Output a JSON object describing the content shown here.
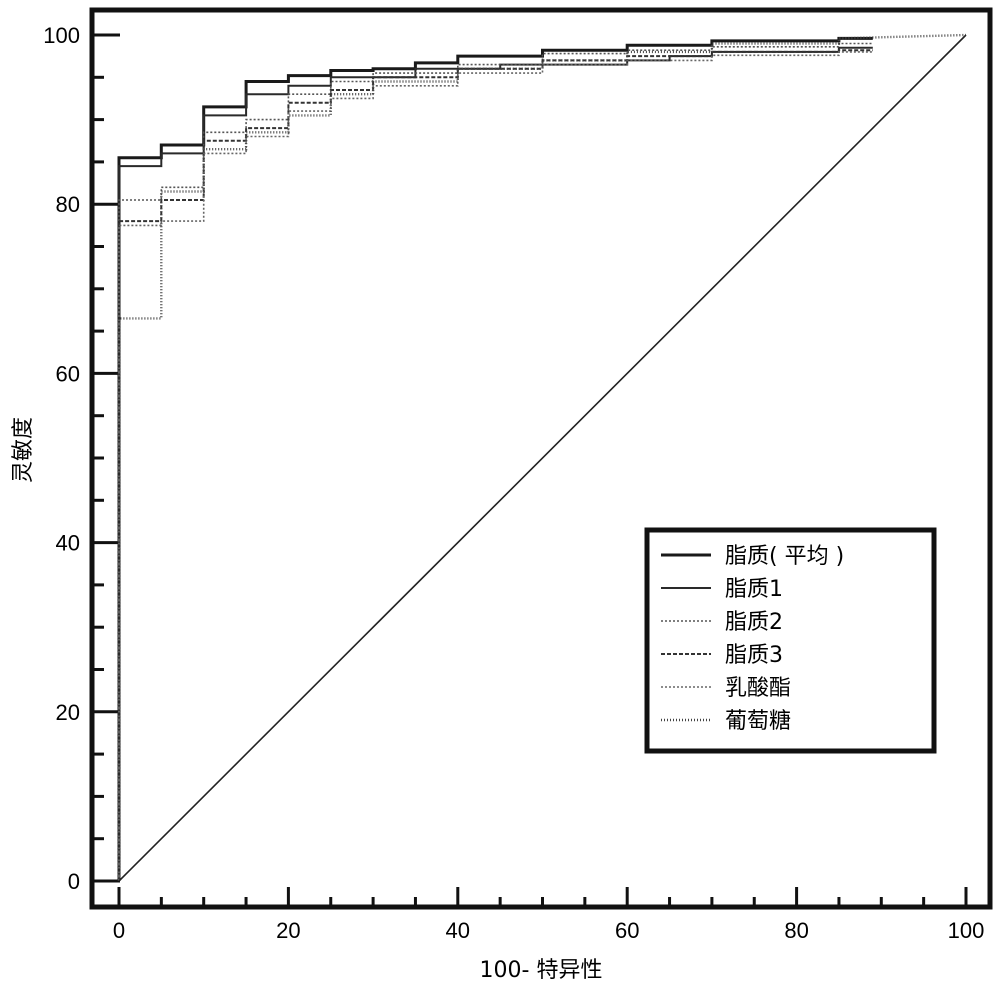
{
  "chart_data": {
    "type": "line",
    "xlabel": "100- 特异性",
    "ylabel": "灵敏度",
    "xlim": [
      0,
      100
    ],
    "ylim": [
      0,
      100
    ],
    "xticks": [
      0,
      20,
      40,
      60,
      80,
      100
    ],
    "yticks": [
      0,
      20,
      40,
      60,
      80,
      100
    ],
    "grid": false,
    "legend_position": "lower-right",
    "series": [
      {
        "name": "脂质( 平均 )",
        "x": [
          0,
          0,
          5,
          5,
          10,
          10,
          15,
          15,
          20,
          20,
          25,
          25,
          30,
          30,
          35,
          35,
          40,
          40,
          50,
          50,
          60,
          60,
          70,
          70,
          85,
          85,
          89
        ],
        "y": [
          0,
          85.5,
          85.5,
          87,
          87,
          91.5,
          91.5,
          94.5,
          94.5,
          95.2,
          95.2,
          95.8,
          95.8,
          96,
          96,
          96.7,
          96.7,
          97.5,
          97.5,
          98.2,
          98.2,
          98.8,
          98.8,
          99.3,
          99.3,
          99.6,
          99.6
        ]
      },
      {
        "name": "脂质1",
        "x": [
          0,
          0,
          5,
          5,
          10,
          10,
          15,
          15,
          20,
          20,
          25,
          25,
          35,
          35,
          45,
          45,
          60,
          60,
          65,
          65,
          70,
          70,
          85,
          85,
          89
        ],
        "y": [
          0,
          84.5,
          84.5,
          86,
          86,
          90.5,
          90.5,
          93,
          93,
          94,
          94,
          95,
          95,
          96,
          96,
          96.5,
          96.5,
          97,
          97,
          97.5,
          97.5,
          98,
          98,
          98.5,
          98.5
        ]
      },
      {
        "name": "脂质2",
        "x": [
          0,
          0,
          5,
          5,
          10,
          10,
          15,
          15,
          20,
          20,
          25,
          25,
          30,
          30,
          40,
          40,
          50,
          50,
          60,
          60,
          70,
          70,
          85,
          85,
          89
        ],
        "y": [
          0,
          80.5,
          80.5,
          82,
          82,
          88.5,
          88.5,
          90,
          90,
          93,
          93,
          94.5,
          94.5,
          95.5,
          95.5,
          96.5,
          96.5,
          97.8,
          97.8,
          98.2,
          98.2,
          98.6,
          98.6,
          99,
          99
        ]
      },
      {
        "name": "脂质3",
        "x": [
          0,
          0,
          5,
          5,
          10,
          10,
          15,
          15,
          20,
          20,
          25,
          25,
          30,
          30,
          40,
          40,
          50,
          50,
          60,
          60,
          70,
          70,
          85,
          85,
          89
        ],
        "y": [
          0,
          78,
          78,
          80.5,
          80.5,
          87.5,
          87.5,
          89,
          89,
          92,
          92,
          93.5,
          93.5,
          95,
          95,
          96,
          96,
          97,
          97,
          97.5,
          97.5,
          98,
          98,
          98.2,
          98.2
        ]
      },
      {
        "name": "乳酸酯",
        "x": [
          0,
          0,
          5,
          5,
          10,
          10,
          15,
          15,
          20,
          20,
          25,
          25,
          30,
          30,
          40,
          40,
          50,
          50,
          60,
          60,
          70,
          70,
          85,
          85,
          89
        ],
        "y": [
          0,
          77.5,
          77.5,
          78,
          78,
          86,
          86,
          88,
          88,
          91,
          91,
          92.5,
          92.5,
          94,
          94,
          95.5,
          95.5,
          96.5,
          96.5,
          97,
          97,
          97.6,
          97.6,
          98,
          98
        ]
      },
      {
        "name": "葡萄糖",
        "x": [
          0,
          0,
          5,
          5,
          10,
          10,
          15,
          15,
          20,
          20,
          25,
          25,
          30,
          30,
          40,
          40,
          50,
          50,
          60,
          60,
          70,
          70,
          85,
          85,
          100
        ],
        "y": [
          0,
          66.5,
          66.5,
          81.5,
          81.5,
          86.5,
          86.5,
          88.5,
          88.5,
          90.5,
          90.5,
          93,
          93,
          94.5,
          94.5,
          96,
          96,
          97,
          97,
          98,
          98,
          99,
          99,
          99.6,
          100
        ]
      },
      {
        "x": [
          0,
          100
        ],
        "y": [
          0,
          100
        ]
      }
    ]
  },
  "styles": {
    "axis_color": "#111111",
    "series_strokes": [
      "#1a1a1a",
      "#2a2a2a",
      "#555555",
      "#333333",
      "#666666",
      "#444444",
      "#222222"
    ],
    "series_widths": [
      3,
      2,
      1.6,
      2,
      1.6,
      2.4,
      1.6
    ],
    "series_dashes": [
      "",
      "",
      "2 2",
      "4 2",
      "2 2",
      "1 2",
      ""
    ]
  }
}
